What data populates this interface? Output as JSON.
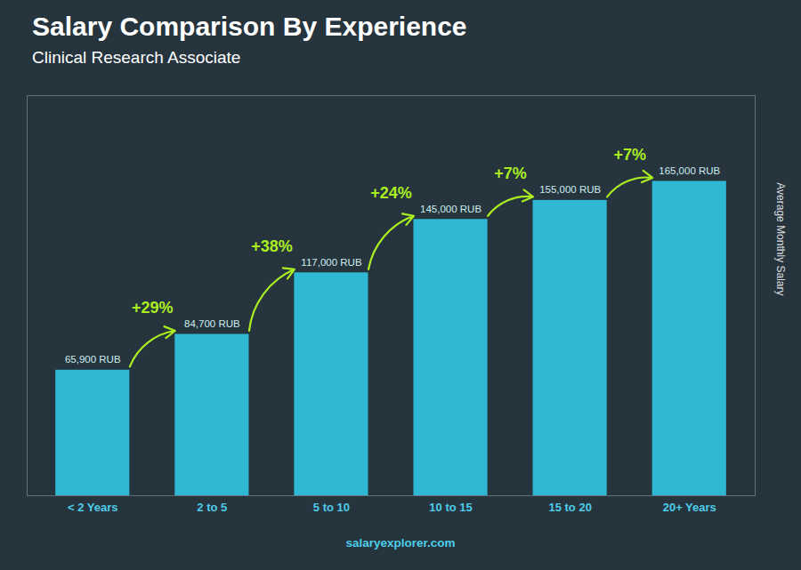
{
  "chart_data": {
    "type": "bar",
    "title": "Salary Comparison By Experience",
    "subtitle": "Clinical Research Associate",
    "ylabel": "Average Monthly Salary",
    "caption": "salaryexplorer.com",
    "categories": [
      "< 2 Years",
      "2 to 5",
      "5 to 10",
      "10 to 15",
      "15 to 20",
      "20+ Years"
    ],
    "values": [
      65900,
      84700,
      117000,
      145000,
      155000,
      165000
    ],
    "value_labels": [
      "65,900 RUB",
      "84,700 RUB",
      "117,000 RUB",
      "145,000 RUB",
      "155,000 RUB",
      "165,000 RUB"
    ],
    "data_labels": true,
    "annotations": [
      "+29%",
      "+38%",
      "+24%",
      "+7%",
      "+7%"
    ],
    "color": "#2eb8d4",
    "ylim": [
      0,
      210000
    ],
    "tick_labels": "x"
  }
}
